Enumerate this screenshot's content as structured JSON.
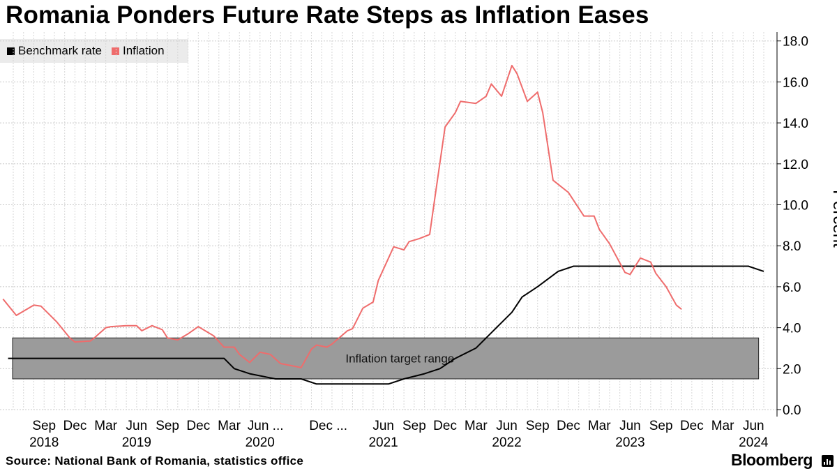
{
  "title": "Romania Ponders Future Rate Steps as Inflation Eases",
  "legend": [
    {
      "label": "Benchmark rate",
      "color": "#000000"
    },
    {
      "label": "Inflation",
      "color": "#ef6c6c"
    }
  ],
  "ylabel": "Percent",
  "source": "Source: National Bank of Romania, statistics office",
  "brand": "Bloomberg",
  "chart_data": {
    "type": "line",
    "title": "Romania Ponders Future Rate Steps as Inflation Eases",
    "ylabel": "Percent",
    "ylim": [
      0,
      18
    ],
    "yticks": [
      0,
      2,
      4,
      6,
      8,
      10,
      12,
      14,
      16,
      18
    ],
    "ytick_labels": [
      "0.0",
      "2.0",
      "4.0",
      "6.0",
      "8.0",
      "10.0",
      "12.0",
      "14.0",
      "16.0",
      "18.0"
    ],
    "grid": true,
    "x_unit": "months since Jun 2018",
    "xlim": [
      0,
      73
    ],
    "xticks": [
      {
        "x": 3,
        "month": "Sep",
        "year": "2018"
      },
      {
        "x": 6,
        "month": "Dec",
        "year": ""
      },
      {
        "x": 9,
        "month": "Mar",
        "year": ""
      },
      {
        "x": 12,
        "month": "Jun",
        "year": "2019"
      },
      {
        "x": 15,
        "month": "Sep",
        "year": ""
      },
      {
        "x": 18,
        "month": "Dec",
        "year": ""
      },
      {
        "x": 21,
        "month": "Mar",
        "year": ""
      },
      {
        "x": 24,
        "month": "Jun ...",
        "year": "2020"
      },
      {
        "x": 30,
        "month": "Dec ...",
        "year": ""
      },
      {
        "x": 36,
        "month": "Jun",
        "year": "2021"
      },
      {
        "x": 39,
        "month": "Sep",
        "year": ""
      },
      {
        "x": 42,
        "month": "Dec",
        "year": ""
      },
      {
        "x": 45,
        "month": "Mar",
        "year": ""
      },
      {
        "x": 48,
        "month": "Jun",
        "year": "2022"
      },
      {
        "x": 51,
        "month": "Sep",
        "year": ""
      },
      {
        "x": 54,
        "month": "Dec",
        "year": ""
      },
      {
        "x": 57,
        "month": "Mar",
        "year": ""
      },
      {
        "x": 60,
        "month": "Jun",
        "year": "2023"
      },
      {
        "x": 63,
        "month": "Sep",
        "year": ""
      },
      {
        "x": 66,
        "month": "Dec",
        "year": ""
      },
      {
        "x": 69,
        "month": "Mar",
        "year": ""
      },
      {
        "x": 72,
        "month": "Jun",
        "year": "2024"
      }
    ],
    "band": {
      "label": "Inflation target range",
      "y0": 1.5,
      "y1": 3.5,
      "x0": 0,
      "x1": 72.5
    },
    "series": [
      {
        "name": "Benchmark rate",
        "color": "#000000",
        "points": [
          [
            -0.5,
            2.5
          ],
          [
            20.5,
            2.5
          ],
          [
            21.5,
            2.0
          ],
          [
            23,
            1.75
          ],
          [
            25.5,
            1.5
          ],
          [
            28,
            1.5
          ],
          [
            29.5,
            1.25
          ],
          [
            36.5,
            1.25
          ],
          [
            38,
            1.5
          ],
          [
            40,
            1.75
          ],
          [
            41.5,
            2.0
          ],
          [
            43,
            2.5
          ],
          [
            45,
            3.0
          ],
          [
            46.5,
            3.75
          ],
          [
            48.5,
            4.75
          ],
          [
            49.5,
            5.5
          ],
          [
            51,
            6.0
          ],
          [
            53,
            6.75
          ],
          [
            54.5,
            7.0
          ],
          [
            71.5,
            7.0
          ],
          [
            73,
            6.75
          ]
        ]
      },
      {
        "name": "Inflation",
        "color": "#ef6c6c",
        "points": [
          [
            -1,
            5.4
          ],
          [
            0.3,
            4.6
          ],
          [
            2,
            5.1
          ],
          [
            2.7,
            5.05
          ],
          [
            4.2,
            4.3
          ],
          [
            5.5,
            3.5
          ],
          [
            6,
            3.3
          ],
          [
            7.5,
            3.35
          ],
          [
            8,
            3.55
          ],
          [
            9,
            4.0
          ],
          [
            9.5,
            4.05
          ],
          [
            11,
            4.1
          ],
          [
            12,
            4.1
          ],
          [
            12.5,
            3.85
          ],
          [
            13.5,
            4.1
          ],
          [
            14.5,
            3.9
          ],
          [
            15,
            3.5
          ],
          [
            16,
            3.4
          ],
          [
            17,
            3.7
          ],
          [
            18,
            4.05
          ],
          [
            19.5,
            3.6
          ],
          [
            20.5,
            3.05
          ],
          [
            21.5,
            3.05
          ],
          [
            22,
            2.7
          ],
          [
            23,
            2.3
          ],
          [
            24,
            2.8
          ],
          [
            25,
            2.7
          ],
          [
            26,
            2.25
          ],
          [
            27,
            2.15
          ],
          [
            28,
            2.05
          ],
          [
            29,
            2.95
          ],
          [
            29.5,
            3.15
          ],
          [
            30.5,
            3.05
          ],
          [
            31,
            3.2
          ],
          [
            32.5,
            3.85
          ],
          [
            33,
            3.95
          ],
          [
            34,
            4.95
          ],
          [
            35,
            5.25
          ],
          [
            35.5,
            6.3
          ],
          [
            37,
            7.95
          ],
          [
            38,
            7.8
          ],
          [
            38.5,
            8.2
          ],
          [
            39.5,
            8.35
          ],
          [
            40.5,
            8.55
          ],
          [
            41,
            10.3
          ],
          [
            42,
            13.8
          ],
          [
            43,
            14.5
          ],
          [
            43.5,
            15.05
          ],
          [
            45,
            14.95
          ],
          [
            46,
            15.3
          ],
          [
            46.5,
            15.9
          ],
          [
            47.5,
            15.3
          ],
          [
            48.5,
            16.8
          ],
          [
            49,
            16.4
          ],
          [
            50,
            15.05
          ],
          [
            51,
            15.5
          ],
          [
            51.5,
            14.5
          ],
          [
            52.5,
            11.2
          ],
          [
            54,
            10.6
          ],
          [
            55.5,
            9.45
          ],
          [
            56.5,
            9.45
          ],
          [
            57,
            8.8
          ],
          [
            58,
            8.1
          ],
          [
            59.5,
            6.7
          ],
          [
            60,
            6.6
          ],
          [
            61,
            7.4
          ],
          [
            62,
            7.2
          ],
          [
            62.5,
            6.65
          ],
          [
            63.5,
            6.0
          ],
          [
            64.5,
            5.1
          ],
          [
            65,
            4.9
          ]
        ]
      }
    ]
  }
}
